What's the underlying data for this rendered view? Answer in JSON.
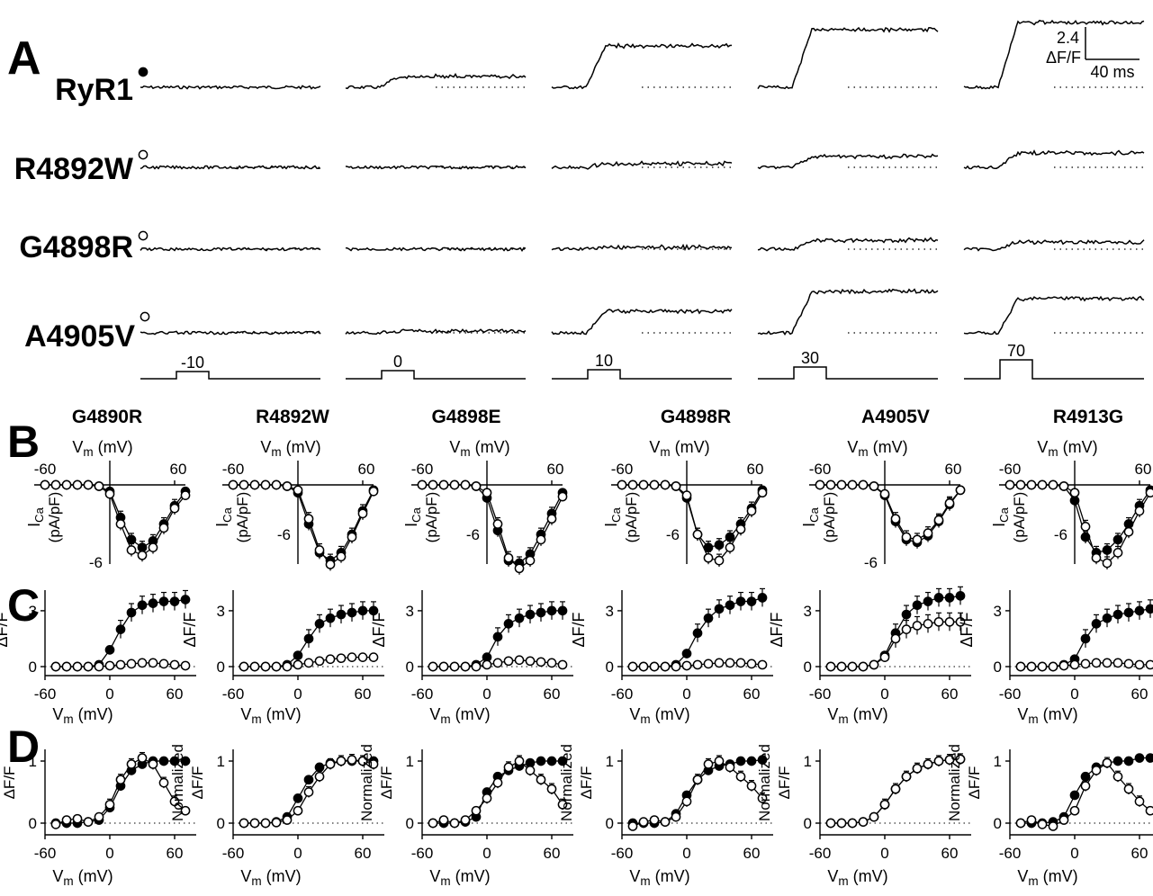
{
  "chart_data": [
    {
      "panel": "A",
      "type": "line",
      "row_labels": [
        "RyR1",
        "R4892W",
        "G4898R",
        "A4905V"
      ],
      "row_markers": [
        "filled",
        "open",
        "open",
        "open"
      ],
      "step_voltages": [
        "-10",
        "0",
        "10",
        "30",
        "70"
      ],
      "scale_bar": {
        "y_value": "2.4",
        "y_unit": "ΔF/F",
        "x_label": "40 ms"
      },
      "amplitudes": [
        [
          0.0,
          0.6,
          2.3,
          3.2,
          3.6
        ],
        [
          0.0,
          0.0,
          0.2,
          0.6,
          0.8
        ],
        [
          0.0,
          0.0,
          0.1,
          0.5,
          0.4
        ],
        [
          0.0,
          0.1,
          1.2,
          2.3,
          1.9
        ]
      ]
    },
    {
      "panel": "B",
      "type": "line",
      "xlabel": "Vm (mV)",
      "ylabel": "ICa (pA/pF)",
      "xlim": [
        -60,
        70
      ],
      "x_ticks": [
        "-60",
        "60"
      ],
      "x": [
        -60,
        -50,
        -40,
        -30,
        -20,
        -10,
        0,
        10,
        20,
        30,
        40,
        50,
        60,
        70
      ],
      "constructs": [
        {
          "title": "G4890R",
          "y_tick": "-6",
          "filled": [
            0,
            0,
            0,
            0,
            0,
            -0.1,
            -0.5,
            -2.5,
            -4.2,
            -4.8,
            -4.3,
            -3.0,
            -1.6,
            -0.5
          ],
          "open": [
            0,
            0,
            0,
            0,
            0,
            -0.1,
            -0.7,
            -3.0,
            -5.0,
            -5.4,
            -4.8,
            -3.3,
            -1.8,
            -0.8
          ]
        },
        {
          "title": "R4892W",
          "y_tick": "-6",
          "filled": [
            0,
            0,
            0,
            0,
            0,
            -0.1,
            -0.6,
            -3.0,
            -5.2,
            -5.8,
            -5.2,
            -3.8,
            -2.0,
            -0.4
          ],
          "open": [
            0,
            0,
            0,
            0,
            0,
            -0.1,
            -0.4,
            -2.6,
            -5.0,
            -6.1,
            -5.5,
            -4.0,
            -2.2,
            -0.5
          ]
        },
        {
          "title": "G4898E",
          "y_tick": "-6",
          "filled": [
            0,
            0,
            0,
            0,
            0,
            -0.1,
            -1.0,
            -3.5,
            -5.8,
            -6.0,
            -5.3,
            -3.8,
            -2.2,
            -0.6
          ],
          "open": [
            0,
            0,
            0,
            0,
            0,
            -0.1,
            -0.6,
            -3.0,
            -5.6,
            -6.4,
            -5.8,
            -4.2,
            -2.6,
            -0.9
          ]
        },
        {
          "title": "G4898R",
          "y_tick": "-6",
          "filled": [
            0,
            0,
            0,
            0,
            0,
            -0.1,
            -1.0,
            -3.8,
            -4.8,
            -4.6,
            -4.0,
            -3.0,
            -1.8,
            -0.4
          ],
          "open": [
            0,
            0,
            0,
            0,
            0,
            -0.1,
            -0.8,
            -3.8,
            -5.6,
            -5.8,
            -4.8,
            -3.4,
            -2.0,
            -0.6
          ]
        },
        {
          "title": "A4905V",
          "y_tick": "-6",
          "filled": [
            0,
            0,
            0,
            0,
            0,
            -0.1,
            -0.8,
            -2.8,
            -4.2,
            -4.4,
            -3.9,
            -2.8,
            -1.5,
            -0.4
          ],
          "open": [
            0,
            0,
            0,
            0,
            0,
            -0.1,
            -0.7,
            -2.6,
            -4.0,
            -4.2,
            -3.7,
            -2.7,
            -1.4,
            -0.4
          ]
        },
        {
          "title": "R4913G",
          "y_tick": "-6",
          "filled": [
            0,
            0,
            0,
            0,
            0,
            -0.1,
            -1.2,
            -4.0,
            -5.2,
            -5.0,
            -4.2,
            -3.0,
            -1.6,
            -0.4
          ],
          "open": [
            0,
            0,
            0,
            0,
            0,
            -0.1,
            -0.6,
            -3.2,
            -5.6,
            -6.0,
            -5.2,
            -3.6,
            -2.0,
            -0.6
          ]
        }
      ]
    },
    {
      "panel": "C",
      "type": "scatter",
      "xlabel": "Vm (mV)",
      "ylabel": "ΔF/F",
      "xlim": [
        -60,
        80
      ],
      "ylim": [
        -0.2,
        4.5
      ],
      "x_ticks": [
        "-60",
        "0",
        "60"
      ],
      "y_ticks": [
        "0",
        "3"
      ],
      "x": [
        -50,
        -40,
        -30,
        -20,
        -10,
        0,
        10,
        20,
        30,
        40,
        50,
        60,
        70
      ],
      "constructs": [
        {
          "filled": [
            0,
            0,
            0,
            0,
            0.1,
            0.9,
            2.0,
            2.9,
            3.3,
            3.4,
            3.5,
            3.5,
            3.6
          ],
          "open": [
            0,
            0,
            0,
            0,
            0,
            0.05,
            0.1,
            0.15,
            0.2,
            0.2,
            0.15,
            0.1,
            0.05
          ]
        },
        {
          "filled": [
            0,
            0,
            0,
            0,
            0.1,
            0.6,
            1.5,
            2.3,
            2.6,
            2.8,
            2.9,
            3.0,
            3.0
          ],
          "open": [
            0,
            0,
            0,
            0,
            0,
            0.1,
            0.2,
            0.3,
            0.4,
            0.45,
            0.5,
            0.5,
            0.5
          ]
        },
        {
          "filled": [
            0,
            0,
            0,
            0,
            0.1,
            0.5,
            1.6,
            2.3,
            2.6,
            2.8,
            2.9,
            3.0,
            3.0
          ],
          "open": [
            0,
            0,
            0,
            0,
            0,
            0.1,
            0.2,
            0.3,
            0.35,
            0.3,
            0.25,
            0.2,
            0.1
          ]
        },
        {
          "filled": [
            0,
            0,
            0,
            0,
            0.1,
            0.7,
            1.8,
            2.6,
            3.1,
            3.3,
            3.5,
            3.5,
            3.7
          ],
          "open": [
            0,
            0,
            0,
            0,
            0,
            0.05,
            0.1,
            0.15,
            0.2,
            0.2,
            0.2,
            0.15,
            0.1
          ]
        },
        {
          "filled": [
            0,
            0,
            0,
            0,
            0.1,
            0.6,
            1.8,
            2.8,
            3.3,
            3.5,
            3.7,
            3.7,
            3.8
          ],
          "open": [
            0,
            0,
            0,
            0,
            0.1,
            0.5,
            1.5,
            2.0,
            2.2,
            2.3,
            2.4,
            2.4,
            2.4
          ]
        },
        {
          "filled": [
            0,
            0,
            0,
            0,
            0.1,
            0.4,
            1.5,
            2.3,
            2.6,
            2.8,
            2.9,
            3.0,
            3.1
          ],
          "open": [
            0,
            0,
            0,
            0,
            0.05,
            0.1,
            0.15,
            0.2,
            0.2,
            0.2,
            0.15,
            0.1,
            0.1
          ]
        }
      ]
    },
    {
      "panel": "D",
      "type": "scatter",
      "xlabel": "Vm (mV)",
      "ylabel": "Normalized ΔF/F",
      "xlim": [
        -60,
        80
      ],
      "ylim": [
        -0.15,
        1.2
      ],
      "x_ticks": [
        "-60",
        "0",
        "60"
      ],
      "y_ticks": [
        "0",
        "1"
      ],
      "x": [
        -50,
        -40,
        -30,
        -20,
        -10,
        0,
        10,
        20,
        30,
        40,
        50,
        60,
        70
      ],
      "constructs": [
        {
          "filled": [
            0,
            0,
            0,
            0.02,
            0.05,
            0.25,
            0.6,
            0.85,
            0.95,
            1.0,
            1.0,
            1.0,
            1.0
          ],
          "open": [
            -0.02,
            0.05,
            0.07,
            0.02,
            0.1,
            0.3,
            0.7,
            0.95,
            1.05,
            0.95,
            0.65,
            0.35,
            0.2
          ]
        },
        {
          "filled": [
            0,
            0,
            0,
            0.02,
            0.1,
            0.4,
            0.7,
            0.9,
            0.97,
            1.0,
            1.0,
            1.0,
            1.0
          ],
          "open": [
            0,
            0,
            0,
            0.01,
            0.05,
            0.2,
            0.5,
            0.75,
            0.95,
            1.0,
            1.02,
            1.0,
            0.95
          ]
        },
        {
          "filled": [
            0,
            0,
            0,
            0.02,
            0.1,
            0.5,
            0.75,
            0.85,
            0.92,
            0.97,
            1.0,
            1.0,
            1.0
          ],
          "open": [
            0,
            0.05,
            0,
            0.05,
            0.2,
            0.4,
            0.65,
            0.9,
            1.0,
            0.85,
            0.7,
            0.55,
            0.3
          ]
        },
        {
          "filled": [
            0,
            0,
            0,
            0.02,
            0.15,
            0.45,
            0.7,
            0.85,
            0.92,
            0.95,
            1.0,
            1.0,
            1.02
          ],
          "open": [
            -0.05,
            0.02,
            0.05,
            0.02,
            0.1,
            0.35,
            0.7,
            0.95,
            1.0,
            0.9,
            0.75,
            0.6,
            0.4
          ]
        },
        {
          "filled": [
            0,
            0,
            0,
            0.02,
            0.1,
            0.3,
            0.55,
            0.75,
            0.88,
            0.95,
            1.0,
            1.02,
            1.03
          ],
          "open": [
            0,
            0,
            0,
            0.02,
            0.1,
            0.3,
            0.55,
            0.75,
            0.88,
            0.95,
            1.0,
            1.02,
            1.03
          ]
        },
        {
          "filled": [
            0,
            0,
            0,
            0.02,
            0.1,
            0.45,
            0.75,
            0.9,
            0.97,
            1.0,
            1.0,
            1.05,
            1.05
          ],
          "open": [
            0,
            0.05,
            -0.02,
            -0.05,
            0.05,
            0.2,
            0.6,
            0.85,
            0.97,
            0.75,
            0.55,
            0.35,
            0.2
          ]
        }
      ]
    }
  ],
  "panel_letters": [
    "A",
    "B",
    "C",
    "D"
  ],
  "construct_titles": [
    "G4890R",
    "R4892W",
    "G4898E",
    "G4898R",
    "A4905V",
    "R4913G"
  ],
  "axis_text": {
    "vm_sub": "m",
    "vm_unit": "(mV)",
    "v_letter": "V",
    "ica_I": "I",
    "ica_sub": "Ca",
    "ica_unit": "(pA/pF)",
    "dff": "ΔF/F",
    "normalized": "Normalized",
    "neg60": "-60",
    "pos60": "60",
    "zero": "0",
    "three": "3",
    "one": "1",
    "neg6": "-6"
  }
}
